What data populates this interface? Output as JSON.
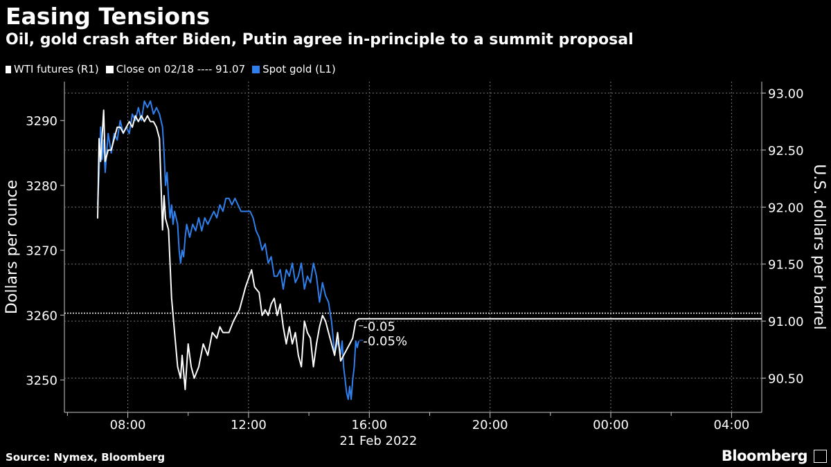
{
  "header": {
    "title": "Easing Tensions",
    "subtitle": "Oil, gold crash after Biden, Putin agree in-principle to a summit proposal"
  },
  "legend": {
    "items": [
      {
        "label": "WTI futures (R1)",
        "color": "#ffffff"
      },
      {
        "label": "Close on 02/18 ---- 91.07",
        "color": "#ffffff"
      },
      {
        "label": "Spot gold (L1)",
        "color": "#2f80ed"
      }
    ]
  },
  "footer": {
    "source": "Source: Nymex, Bloomberg",
    "brand": "Bloomberg"
  },
  "chart_data": {
    "type": "line",
    "xlabel": "21 Feb 2022",
    "x_ticks": [
      "08:00",
      "12:00",
      "16:00",
      "20:00",
      "00:00",
      "04:00"
    ],
    "x_range_hours": [
      5.9,
      29.0
    ],
    "y_left": {
      "label": "Dollars per ounce",
      "ticks": [
        3250,
        3260,
        3270,
        3280,
        3290
      ],
      "range": [
        3245,
        3296
      ]
    },
    "y_right": {
      "label": "U.S. dollars per barrel",
      "ticks": [
        "90.50",
        "91.00",
        "91.50",
        "92.00",
        "92.50",
        "93.00"
      ],
      "range": [
        90.2,
        93.1
      ]
    },
    "reference_line": {
      "label": "Close on 02/18",
      "value": 91.07,
      "axis": "right"
    },
    "annotations": [
      "-0.05",
      "-0.05%"
    ],
    "series": [
      {
        "name": "Spot gold (L1)",
        "axis": "left",
        "color": "#2f80ed",
        "points": [
          [
            7.0,
            3277
          ],
          [
            7.05,
            3282
          ],
          [
            7.1,
            3289
          ],
          [
            7.15,
            3284
          ],
          [
            7.2,
            3287
          ],
          [
            7.25,
            3282
          ],
          [
            7.35,
            3288
          ],
          [
            7.45,
            3285
          ],
          [
            7.55,
            3288
          ],
          [
            7.65,
            3287
          ],
          [
            7.75,
            3290
          ],
          [
            7.85,
            3288
          ],
          [
            7.95,
            3289
          ],
          [
            8.05,
            3288
          ],
          [
            8.15,
            3291
          ],
          [
            8.25,
            3290
          ],
          [
            8.35,
            3292
          ],
          [
            8.45,
            3290
          ],
          [
            8.55,
            3293
          ],
          [
            8.65,
            3292
          ],
          [
            8.75,
            3293
          ],
          [
            8.85,
            3291
          ],
          [
            8.95,
            3292
          ],
          [
            9.05,
            3291
          ],
          [
            9.15,
            3289
          ],
          [
            9.2,
            3285
          ],
          [
            9.25,
            3280
          ],
          [
            9.3,
            3282
          ],
          [
            9.35,
            3278
          ],
          [
            9.4,
            3275
          ],
          [
            9.45,
            3277
          ],
          [
            9.5,
            3274
          ],
          [
            9.55,
            3276
          ],
          [
            9.6,
            3275
          ],
          [
            9.65,
            3274
          ],
          [
            9.7,
            3270
          ],
          [
            9.75,
            3268
          ],
          [
            9.8,
            3270
          ],
          [
            9.85,
            3269
          ],
          [
            9.9,
            3272
          ],
          [
            9.95,
            3274
          ],
          [
            10.05,
            3272
          ],
          [
            10.15,
            3274
          ],
          [
            10.25,
            3273
          ],
          [
            10.35,
            3275
          ],
          [
            10.45,
            3273
          ],
          [
            10.55,
            3275
          ],
          [
            10.65,
            3274
          ],
          [
            10.75,
            3275
          ],
          [
            10.85,
            3276
          ],
          [
            10.95,
            3275
          ],
          [
            11.05,
            3277
          ],
          [
            11.15,
            3276
          ],
          [
            11.25,
            3278
          ],
          [
            11.35,
            3278
          ],
          [
            11.45,
            3277
          ],
          [
            11.55,
            3278
          ],
          [
            11.65,
            3277
          ],
          [
            11.75,
            3276
          ],
          [
            11.85,
            3276
          ],
          [
            11.95,
            3276
          ],
          [
            12.05,
            3276
          ],
          [
            12.15,
            3275
          ],
          [
            12.25,
            3273
          ],
          [
            12.35,
            3272
          ],
          [
            12.45,
            3270
          ],
          [
            12.55,
            3271
          ],
          [
            12.65,
            3268
          ],
          [
            12.75,
            3269
          ],
          [
            12.85,
            3266
          ],
          [
            12.95,
            3266
          ],
          [
            13.05,
            3267
          ],
          [
            13.15,
            3264
          ],
          [
            13.25,
            3267
          ],
          [
            13.35,
            3266
          ],
          [
            13.45,
            3268
          ],
          [
            13.55,
            3265
          ],
          [
            13.65,
            3266
          ],
          [
            13.75,
            3268
          ],
          [
            13.85,
            3264
          ],
          [
            13.95,
            3266
          ],
          [
            14.05,
            3265
          ],
          [
            14.15,
            3268
          ],
          [
            14.25,
            3266
          ],
          [
            14.35,
            3262
          ],
          [
            14.45,
            3265
          ],
          [
            14.55,
            3263
          ],
          [
            14.65,
            3262
          ],
          [
            14.75,
            3259
          ],
          [
            14.85,
            3254
          ],
          [
            14.95,
            3256
          ],
          [
            15.05,
            3254
          ],
          [
            15.1,
            3256
          ],
          [
            15.15,
            3252
          ],
          [
            15.2,
            3250
          ],
          [
            15.25,
            3248
          ],
          [
            15.3,
            3247
          ],
          [
            15.35,
            3249
          ],
          [
            15.4,
            3247
          ],
          [
            15.45,
            3250
          ],
          [
            15.5,
            3252
          ],
          [
            15.55,
            3256
          ],
          [
            15.6,
            3255
          ],
          [
            15.65,
            3256
          ]
        ]
      },
      {
        "name": "WTI futures (R1)",
        "axis": "right",
        "color": "#ffffff",
        "points": [
          [
            7.0,
            91.9
          ],
          [
            7.05,
            92.6
          ],
          [
            7.1,
            92.4
          ],
          [
            7.2,
            92.85
          ],
          [
            7.25,
            92.4
          ],
          [
            7.35,
            92.5
          ],
          [
            7.45,
            92.5
          ],
          [
            7.55,
            92.6
          ],
          [
            7.65,
            92.7
          ],
          [
            7.75,
            92.7
          ],
          [
            7.85,
            92.65
          ],
          [
            7.95,
            92.7
          ],
          [
            8.05,
            92.75
          ],
          [
            8.15,
            92.7
          ],
          [
            8.25,
            92.8
          ],
          [
            8.35,
            92.75
          ],
          [
            8.45,
            92.8
          ],
          [
            8.55,
            92.75
          ],
          [
            8.65,
            92.8
          ],
          [
            8.75,
            92.75
          ],
          [
            8.85,
            92.75
          ],
          [
            8.95,
            92.7
          ],
          [
            9.05,
            92.6
          ],
          [
            9.15,
            91.8
          ],
          [
            9.2,
            92.1
          ],
          [
            9.25,
            91.9
          ],
          [
            9.35,
            91.8
          ],
          [
            9.45,
            91.2
          ],
          [
            9.55,
            90.9
          ],
          [
            9.65,
            90.6
          ],
          [
            9.75,
            90.5
          ],
          [
            9.8,
            90.7
          ],
          [
            9.9,
            90.4
          ],
          [
            10.0,
            90.8
          ],
          [
            10.1,
            90.6
          ],
          [
            10.2,
            90.5
          ],
          [
            10.35,
            90.6
          ],
          [
            10.5,
            90.8
          ],
          [
            10.65,
            90.7
          ],
          [
            10.8,
            90.9
          ],
          [
            10.95,
            90.85
          ],
          [
            11.05,
            90.95
          ],
          [
            11.15,
            90.9
          ],
          [
            11.35,
            90.9
          ],
          [
            11.5,
            91.0
          ],
          [
            11.7,
            91.1
          ],
          [
            11.9,
            91.3
          ],
          [
            12.1,
            91.45
          ],
          [
            12.2,
            91.3
          ],
          [
            12.35,
            91.25
          ],
          [
            12.45,
            91.05
          ],
          [
            12.55,
            91.1
          ],
          [
            12.65,
            91.05
          ],
          [
            12.75,
            91.15
          ],
          [
            12.85,
            91.2
          ],
          [
            12.95,
            91.05
          ],
          [
            13.05,
            91.15
          ],
          [
            13.15,
            90.95
          ],
          [
            13.25,
            90.8
          ],
          [
            13.35,
            90.95
          ],
          [
            13.45,
            90.8
          ],
          [
            13.55,
            90.9
          ],
          [
            13.65,
            90.7
          ],
          [
            13.75,
            90.6
          ],
          [
            13.85,
            91.0
          ],
          [
            13.95,
            90.9
          ],
          [
            14.05,
            90.85
          ],
          [
            14.15,
            90.6
          ],
          [
            14.25,
            90.8
          ],
          [
            14.35,
            90.95
          ],
          [
            14.45,
            91.05
          ],
          [
            14.55,
            91.0
          ],
          [
            14.65,
            90.9
          ],
          [
            14.75,
            90.8
          ],
          [
            14.85,
            90.7
          ],
          [
            14.95,
            90.9
          ],
          [
            15.05,
            90.65
          ],
          [
            15.15,
            90.7
          ],
          [
            15.25,
            90.75
          ],
          [
            15.35,
            90.8
          ],
          [
            15.45,
            90.85
          ],
          [
            15.55,
            91.0
          ],
          [
            15.65,
            91.02
          ],
          [
            16.0,
            91.02
          ],
          [
            20.0,
            91.02
          ],
          [
            24.0,
            91.02
          ],
          [
            28.0,
            91.02
          ],
          [
            29.0,
            91.02
          ]
        ]
      }
    ]
  }
}
